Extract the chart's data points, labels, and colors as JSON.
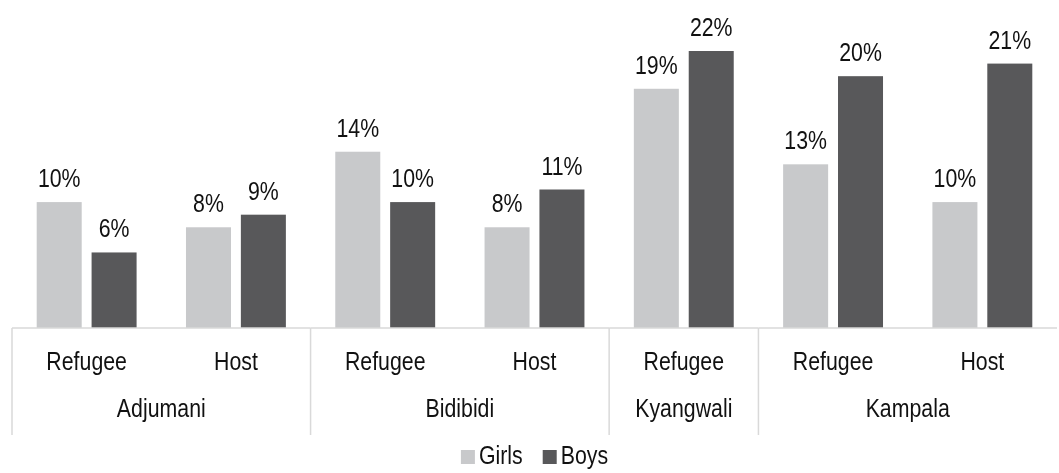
{
  "chart_data": [
    {
      "type": "bar",
      "xlabel": "Adjumani",
      "categories": [
        "Refugee",
        "Host"
      ],
      "series": [
        {
          "color": "#c8c9cb",
          "values": [
            10,
            8
          ],
          "value_labels": [
            "10%",
            "8%"
          ]
        },
        {
          "color": "#58585a",
          "values": [
            6,
            9
          ],
          "value_labels": [
            "6%",
            "9%"
          ]
        }
      ],
      "tick_labels": "x"
    },
    {
      "type": "bar",
      "xlabel": "Bidibidi",
      "categories": [
        "Refugee",
        "Host"
      ],
      "series": [
        {
          "name": "Girls",
          "color": "#c8c9cb",
          "values": [
            14,
            8
          ],
          "value_labels": [
            "14%",
            "8%"
          ]
        },
        {
          "name": "Boys",
          "color": "#58585a",
          "values": [
            10,
            11
          ],
          "value_labels": [
            "10%",
            "11%"
          ]
        }
      ],
      "tick_labels": "x",
      "legend": "bottom"
    },
    {
      "type": "bar",
      "xlabel": "Kyangwali",
      "categories": [
        "Refugee"
      ],
      "series": [
        {
          "color": "#c8c9cb",
          "values": [
            19
          ],
          "value_labels": [
            "19%"
          ]
        },
        {
          "color": "#58585a",
          "values": [
            22
          ],
          "value_labels": [
            "22%"
          ]
        }
      ],
      "tick_labels": "x"
    },
    {
      "type": "bar",
      "xlabel": "Kampala",
      "categories": [
        "Refugee",
        "Host"
      ],
      "series": [
        {
          "color": "#c8c9cb",
          "values": [
            13,
            10
          ],
          "value_labels": [
            "13%",
            "10%"
          ]
        },
        {
          "color": "#58585a",
          "values": [
            20,
            21
          ],
          "value_labels": [
            "20%",
            "21%"
          ]
        }
      ],
      "tick_labels": "x"
    }
  ]
}
